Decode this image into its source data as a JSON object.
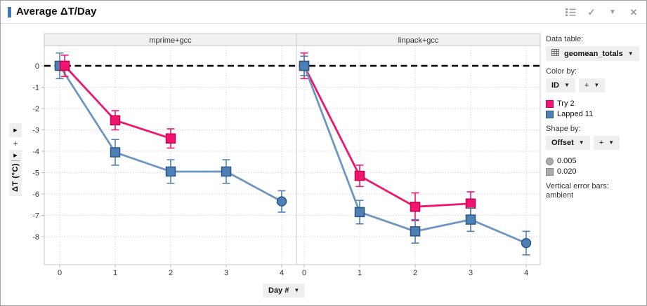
{
  "window": {
    "title": "Average ΔT/Day"
  },
  "y_axis": {
    "label": "ΔT (°C)",
    "add_label": "+"
  },
  "x_axis": {
    "label": "Day #"
  },
  "legend": {
    "data_table": {
      "label": "Data table:",
      "value": "geomean_totals"
    },
    "color_by": {
      "label": "Color by:",
      "value": "ID",
      "add": "+"
    },
    "color_items": [
      {
        "label": "Try 2",
        "color": "#f0156e"
      },
      {
        "label": "Lapped 11",
        "color": "#4e80b3"
      }
    ],
    "shape_by": {
      "label": "Shape by:",
      "value": "Offset",
      "add": "+"
    },
    "shape_items": [
      {
        "label": "0.005",
        "shape": "circle"
      },
      {
        "label": "0.020",
        "shape": "square"
      }
    ],
    "error_bars": {
      "label": "Vertical error bars:",
      "value": "ambient"
    }
  },
  "chart_data": {
    "type": "line",
    "title": "Average ΔT/Day",
    "xlabel": "Day #",
    "ylabel": "ΔT (°C)",
    "ylim": [
      -9.3,
      0.95
    ],
    "x_ticks": [
      0,
      1,
      2,
      3,
      4
    ],
    "y_ticks": [
      0,
      -1,
      -2,
      -3,
      -4,
      -5,
      -6,
      -7,
      -8
    ],
    "grid": true,
    "reference_line": {
      "y": 0,
      "style": "dashed",
      "color": "#000000"
    },
    "shape_meaning": {
      "circle": "0.005",
      "square": "0.020"
    },
    "panels": [
      {
        "label": "mprime+gcc",
        "series": [
          {
            "name": "Lapped 11",
            "color": "#4e80b3",
            "line_color": "#6d97c2",
            "border": "#2a5685",
            "points": [
              {
                "x": 0,
                "y": 0,
                "err": 0.6,
                "shape": "square"
              },
              {
                "x": 1,
                "y": -4.05,
                "err": 0.6,
                "shape": "square"
              },
              {
                "x": 2,
                "y": -4.95,
                "err": 0.55,
                "shape": "square"
              },
              {
                "x": 3,
                "y": -4.95,
                "err": 0.55,
                "shape": "square"
              },
              {
                "x": 4,
                "y": -6.35,
                "err": 0.5,
                "shape": "circle"
              }
            ]
          },
          {
            "name": "Try 2",
            "color": "#f0156e",
            "line_color": "#f0156e",
            "border": "#c7004f",
            "points": [
              {
                "x": 0,
                "y": 0,
                "err": 0.5,
                "shape": "square",
                "x_offset": 0.09
              },
              {
                "x": 1,
                "y": -2.55,
                "err": 0.45,
                "shape": "square"
              },
              {
                "x": 2,
                "y": -3.4,
                "err": 0.45,
                "shape": "square"
              }
            ]
          }
        ]
      },
      {
        "label": "linpack+gcc",
        "series": [
          {
            "name": "Try 2",
            "color": "#f0156e",
            "line_color": "#f0156e",
            "border": "#c7004f",
            "points": [
              {
                "x": 0,
                "y": 0,
                "err": 0.6,
                "shape": "square"
              },
              {
                "x": 1,
                "y": -5.15,
                "err": 0.5,
                "shape": "square"
              },
              {
                "x": 2,
                "y": -6.6,
                "err": 0.65,
                "shape": "square"
              },
              {
                "x": 3,
                "y": -6.45,
                "err": 0.55,
                "shape": "square"
              }
            ]
          },
          {
            "name": "Lapped 11",
            "color": "#4e80b3",
            "line_color": "#6d97c2",
            "border": "#2a5685",
            "points": [
              {
                "x": 0,
                "y": 0,
                "err": 0.45,
                "shape": "square"
              },
              {
                "x": 1,
                "y": -6.85,
                "err": 0.55,
                "shape": "square"
              },
              {
                "x": 2,
                "y": -7.75,
                "err": 0.55,
                "shape": "square"
              },
              {
                "x": 3,
                "y": -7.2,
                "err": 0.55,
                "shape": "square"
              },
              {
                "x": 4,
                "y": -8.3,
                "err": 0.55,
                "shape": "circle"
              }
            ]
          }
        ]
      }
    ]
  }
}
